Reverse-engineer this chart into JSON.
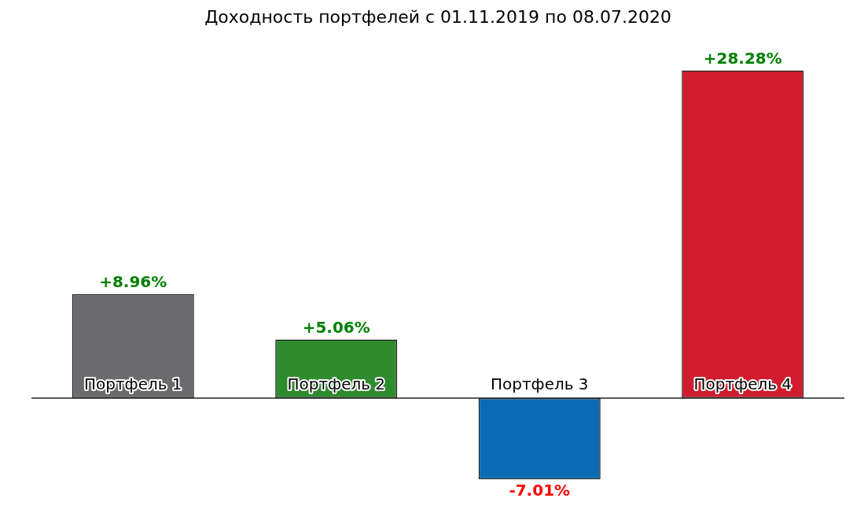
{
  "chart_data": {
    "type": "bar",
    "title": "Доходность портфелей с 01.11.2019 по 08.07.2020",
    "categories": [
      "Портфель 1",
      "Портфель 2",
      "Портфель 3",
      "Портфель 4"
    ],
    "values": [
      8.96,
      5.06,
      -7.01,
      28.28
    ],
    "colors": [
      "#6b6b6d",
      "#2e8b2e",
      "#0b6bb5",
      "#d01c2e"
    ],
    "value_labels": [
      "+8.96%",
      "+5.06%",
      "-7.01%",
      "+28.28%"
    ],
    "legend": false
  }
}
